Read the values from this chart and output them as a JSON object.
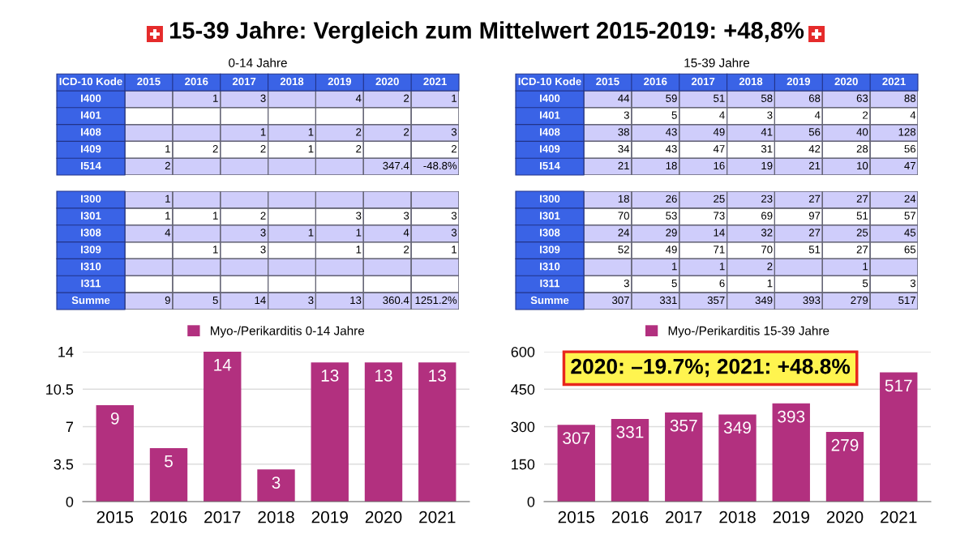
{
  "chart_data": [
    {
      "type": "heatmap",
      "title": "15-39 Jahre: Vergleich zum Mittelwert 2015-2019: +48,8%",
      "subtitle": "0-14 Jahre",
      "ylabel": "ICD-10 Kode",
      "data_labels": true,
      "categories": [
        "2015",
        "2016",
        "2017",
        "2018",
        "2019",
        "2020",
        "2021"
      ],
      "y_categories": [
        "I400",
        "I401",
        "I408",
        "I409",
        "I514"
      ],
      "cells": [
        [
          null,
          1,
          3,
          null,
          4,
          2,
          1
        ],
        [
          null,
          null,
          null,
          null,
          null,
          null,
          null
        ],
        [
          null,
          null,
          1,
          1,
          2,
          2,
          3
        ],
        [
          1,
          2,
          2,
          1,
          2,
          null,
          2
        ],
        [
          2,
          null,
          null,
          null,
          null,
          347.4,
          -48.8
        ]
      ],
      "cell_labels": [
        [
          null,
          "1",
          "3",
          null,
          "4",
          "2",
          "1"
        ],
        [
          null,
          null,
          null,
          null,
          null,
          null,
          null
        ],
        [
          null,
          null,
          "1",
          "1",
          "2",
          "2",
          "3"
        ],
        [
          "1",
          "2",
          "2",
          "1",
          "2",
          null,
          "2"
        ],
        [
          "2",
          null,
          null,
          null,
          null,
          "347.4",
          "-48.8%"
        ]
      ]
    },
    {
      "type": "heatmap",
      "tick_labels": "y",
      "categories": [
        "2015",
        "2016",
        "2017",
        "2018",
        "2019",
        "2020",
        "2021"
      ],
      "y_categories": [
        "I300",
        "I301",
        "I308",
        "I309",
        "I310",
        "I311",
        "Summe"
      ],
      "data_labels": true,
      "cells": [
        [
          1,
          null,
          null,
          null,
          null,
          null,
          null
        ],
        [
          1,
          1,
          2,
          null,
          3,
          3,
          3
        ],
        [
          4,
          null,
          3,
          1,
          1,
          4,
          3
        ],
        [
          null,
          1,
          3,
          null,
          1,
          2,
          1
        ],
        [
          null,
          null,
          null,
          null,
          null,
          null,
          null
        ],
        [
          null,
          null,
          null,
          null,
          null,
          null,
          null
        ],
        [
          9,
          5,
          14,
          3,
          13,
          360.4,
          1251.2
        ]
      ],
      "cell_labels": [
        [
          "1",
          null,
          null,
          null,
          null,
          null,
          null
        ],
        [
          "1",
          "1",
          "2",
          null,
          "3",
          "3",
          "3"
        ],
        [
          "4",
          null,
          "3",
          "1",
          "1",
          "4",
          "3"
        ],
        [
          null,
          "1",
          "3",
          null,
          "1",
          "2",
          "1"
        ],
        [
          null,
          null,
          null,
          null,
          null,
          null,
          null
        ],
        [
          null,
          null,
          null,
          null,
          null,
          null,
          null
        ],
        [
          "9",
          "5",
          "14",
          "3",
          "13",
          "360.4",
          "1251.2%"
        ]
      ]
    },
    {
      "type": "heatmap",
      "subtitle": "15-39 Jahre",
      "ylabel": "ICD-10 Kode",
      "data_labels": true,
      "categories": [
        "2015",
        "2016",
        "2017",
        "2018",
        "2019",
        "2020",
        "2021"
      ],
      "y_categories": [
        "I400",
        "I401",
        "I408",
        "I409",
        "I514"
      ],
      "cells": [
        [
          44,
          59,
          51,
          58,
          68,
          63,
          88
        ],
        [
          3,
          5,
          4,
          3,
          4,
          2,
          4
        ],
        [
          38,
          43,
          49,
          41,
          56,
          40,
          128
        ],
        [
          34,
          43,
          47,
          31,
          42,
          28,
          56
        ],
        [
          21,
          18,
          16,
          19,
          21,
          10,
          47
        ]
      ]
    },
    {
      "type": "heatmap",
      "tick_labels": "y",
      "categories": [
        "2015",
        "2016",
        "2017",
        "2018",
        "2019",
        "2020",
        "2021"
      ],
      "y_categories": [
        "I300",
        "I301",
        "I308",
        "I309",
        "I310",
        "I311",
        "Summe"
      ],
      "data_labels": true,
      "cells": [
        [
          18,
          26,
          25,
          23,
          27,
          27,
          24
        ],
        [
          70,
          53,
          73,
          69,
          97,
          51,
          57
        ],
        [
          24,
          29,
          14,
          32,
          27,
          25,
          45
        ],
        [
          52,
          49,
          71,
          70,
          51,
          27,
          65
        ],
        [
          null,
          1,
          1,
          2,
          null,
          1,
          null
        ],
        [
          3,
          5,
          6,
          1,
          null,
          5,
          3
        ],
        [
          307,
          331,
          357,
          349,
          393,
          279,
          517
        ]
      ]
    },
    {
      "type": "bar",
      "categories": [
        "2015",
        "2016",
        "2017",
        "2018",
        "2019",
        "2020",
        "2021"
      ],
      "series": [
        {
          "name": "Myo-/Perikarditis 0-14 Jahre",
          "color": "#b2307f",
          "values": [
            9,
            5,
            14,
            3,
            13,
            13,
            13
          ]
        }
      ],
      "ylim": [
        0,
        14
      ],
      "yticks": [
        0,
        3.5,
        7,
        10.5,
        14
      ],
      "grid": "y",
      "legend": "top",
      "data_labels": true
    },
    {
      "type": "bar",
      "categories": [
        "2015",
        "2016",
        "2017",
        "2018",
        "2019",
        "2020",
        "2021"
      ],
      "series": [
        {
          "name": "Myo-/Perikarditis 15-39 Jahre",
          "color": "#b2307f",
          "values": [
            307,
            331,
            357,
            349,
            393,
            279,
            517
          ]
        }
      ],
      "ylim": [
        0,
        600
      ],
      "yticks": [
        0,
        150,
        300,
        450,
        600
      ],
      "grid": "y",
      "legend": "top",
      "data_labels": true,
      "annotations": [
        "2020: –19.7%; 2021: +48.8%"
      ]
    }
  ]
}
